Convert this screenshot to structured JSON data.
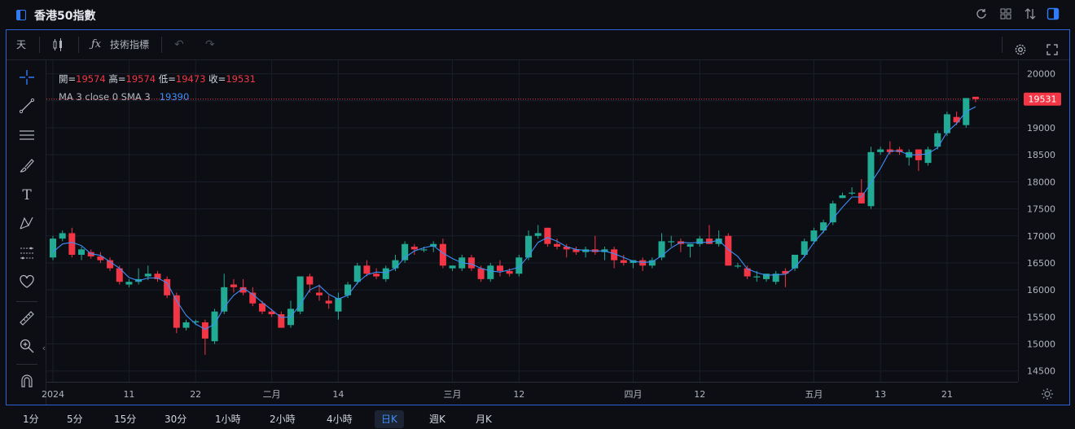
{
  "window": {
    "title": "香港50指數"
  },
  "toolbar": {
    "interval": "天",
    "indicators_label": "技術指標"
  },
  "legend": {
    "open_label": "開=",
    "open": "19574",
    "high_label": "高=",
    "high": "19574",
    "low_label": "低=",
    "low": "19473",
    "close_label": "收=",
    "close": "19531",
    "ma_label": "MA 3 close 0 SMA 3",
    "ma_value": "19390"
  },
  "price_tag": "19531",
  "colors": {
    "up": "#22ab94",
    "down": "#f23645",
    "ma": "#3d8ef7",
    "accent": "#2f7cf6"
  },
  "left_tools": [
    "crosshair-icon",
    "trend-line-icon",
    "horizontal-lines-icon",
    "brush-icon",
    "text-icon",
    "pattern-icon",
    "measure-lines-icon",
    "favorite-heart-icon",
    "ruler-icon",
    "zoom-in-icon",
    "magnet-icon"
  ],
  "timeframes": [
    "1分",
    "5分",
    "15分",
    "30分",
    "1小時",
    "2小時",
    "4小時",
    "日K",
    "週K",
    "月K"
  ],
  "active_timeframe": "日K",
  "chart_data": {
    "type": "candlestick",
    "y_ticks": [
      14500,
      15000,
      15500,
      16000,
      16500,
      17000,
      17500,
      18000,
      18500,
      19000,
      19500,
      20000
    ],
    "ylim": [
      14300,
      20250
    ],
    "x_ticks": [
      {
        "i": 0,
        "label": "2024"
      },
      {
        "i": 8,
        "label": "11"
      },
      {
        "i": 15,
        "label": "22"
      },
      {
        "i": 23,
        "label": "二月"
      },
      {
        "i": 30,
        "label": "14"
      },
      {
        "i": 42,
        "label": "三月"
      },
      {
        "i": 49,
        "label": "12"
      },
      {
        "i": 61,
        "label": "四月"
      },
      {
        "i": 68,
        "label": "12"
      },
      {
        "i": 80,
        "label": "五月"
      },
      {
        "i": 87,
        "label": "13"
      },
      {
        "i": 94,
        "label": "21"
      }
    ],
    "candles": [
      [
        16600,
        17000,
        16550,
        16950
      ],
      [
        16950,
        17100,
        16900,
        17050
      ],
      [
        17050,
        17150,
        16600,
        16650
      ],
      [
        16650,
        16800,
        16550,
        16750
      ],
      [
        16700,
        16750,
        16580,
        16620
      ],
      [
        16620,
        16700,
        16500,
        16550
      ],
      [
        16550,
        16600,
        16350,
        16400
      ],
      [
        16400,
        16450,
        16100,
        16150
      ],
      [
        16100,
        16200,
        16050,
        16150
      ],
      [
        16150,
        16400,
        16100,
        16200
      ],
      [
        16250,
        16450,
        16180,
        16300
      ],
      [
        16300,
        16350,
        16150,
        16200
      ],
      [
        16200,
        16250,
        15850,
        15900
      ],
      [
        15900,
        15950,
        15200,
        15300
      ],
      [
        15300,
        15450,
        15250,
        15400
      ],
      [
        15400,
        15450,
        15350,
        15420
      ],
      [
        15400,
        15450,
        14800,
        15100
      ],
      [
        15050,
        15650,
        15000,
        15600
      ],
      [
        15600,
        16300,
        15550,
        16050
      ],
      [
        16100,
        16200,
        15950,
        16050
      ],
      [
        16050,
        16200,
        15900,
        15950
      ],
      [
        15950,
        16050,
        15700,
        15750
      ],
      [
        15750,
        15800,
        15550,
        15600
      ],
      [
        15600,
        15650,
        15500,
        15550
      ],
      [
        15550,
        15600,
        15300,
        15300
      ],
      [
        15350,
        15800,
        15300,
        15650
      ],
      [
        15600,
        16200,
        15550,
        16250
      ],
      [
        16250,
        16300,
        15950,
        16100
      ],
      [
        15950,
        16100,
        15800,
        15900
      ],
      [
        15800,
        15900,
        15650,
        15750
      ],
      [
        15600,
        15950,
        15450,
        15850
      ],
      [
        15900,
        16150,
        15850,
        16100
      ],
      [
        16150,
        16500,
        16100,
        16450
      ],
      [
        16450,
        16550,
        16250,
        16300
      ],
      [
        16300,
        16400,
        16200,
        16250
      ],
      [
        16200,
        16450,
        16150,
        16400
      ],
      [
        16400,
        16650,
        16350,
        16550
      ],
      [
        16550,
        16900,
        16500,
        16850
      ],
      [
        16800,
        16850,
        16650,
        16750
      ],
      [
        16750,
        16800,
        16700,
        16750
      ],
      [
        16800,
        16900,
        16700,
        16850
      ],
      [
        16850,
        16950,
        16400,
        16450
      ],
      [
        16400,
        16450,
        16350,
        16450
      ],
      [
        16400,
        16650,
        16350,
        16600
      ],
      [
        16600,
        16650,
        16350,
        16400
      ],
      [
        16400,
        16450,
        16150,
        16200
      ],
      [
        16200,
        16500,
        16150,
        16450
      ],
      [
        16450,
        16550,
        16250,
        16350
      ],
      [
        16350,
        16400,
        16250,
        16300
      ],
      [
        16300,
        16650,
        16250,
        16600
      ],
      [
        16600,
        17100,
        16550,
        17000
      ],
      [
        17000,
        17200,
        16950,
        17050
      ],
      [
        17150,
        17150,
        16800,
        16850
      ],
      [
        16850,
        16950,
        16750,
        16800
      ],
      [
        16800,
        16850,
        16600,
        16750
      ],
      [
        16750,
        16800,
        16650,
        16700
      ],
      [
        16700,
        16800,
        16600,
        16750
      ],
      [
        16750,
        17000,
        16650,
        16700
      ],
      [
        16700,
        16800,
        16550,
        16750
      ],
      [
        16750,
        16800,
        16400,
        16550
      ],
      [
        16550,
        16650,
        16450,
        16500
      ],
      [
        16500,
        16550,
        16400,
        16550
      ],
      [
        16550,
        16600,
        16350,
        16450
      ],
      [
        16450,
        16600,
        16400,
        16550
      ],
      [
        16600,
        17050,
        16550,
        16900
      ],
      [
        16900,
        17000,
        16800,
        16900
      ],
      [
        16900,
        16950,
        16700,
        16850
      ],
      [
        16800,
        16850,
        16600,
        16850
      ],
      [
        16850,
        17000,
        16800,
        16950
      ],
      [
        16950,
        17200,
        16850,
        16850
      ],
      [
        16850,
        17100,
        16800,
        16950
      ],
      [
        17000,
        17050,
        16450,
        16450
      ],
      [
        16450,
        16500,
        16400,
        16450
      ],
      [
        16400,
        16450,
        16200,
        16250
      ],
      [
        16250,
        16350,
        16150,
        16250
      ],
      [
        16200,
        16300,
        16150,
        16300
      ],
      [
        16150,
        16350,
        16100,
        16300
      ],
      [
        16350,
        16400,
        16050,
        16300
      ],
      [
        16400,
        16650,
        16350,
        16650
      ],
      [
        16650,
        16950,
        16600,
        16900
      ],
      [
        16900,
        17150,
        16850,
        17100
      ],
      [
        17100,
        17300,
        17050,
        17250
      ],
      [
        17250,
        17650,
        17200,
        17600
      ],
      [
        17700,
        17800,
        17700,
        17750
      ],
      [
        17800,
        17900,
        17750,
        17800
      ],
      [
        17800,
        18050,
        17600,
        17600
      ],
      [
        17550,
        18650,
        17500,
        18550
      ],
      [
        18550,
        18650,
        18500,
        18600
      ],
      [
        18600,
        18750,
        18500,
        18550
      ],
      [
        18600,
        18650,
        18500,
        18550
      ],
      [
        18450,
        18600,
        18300,
        18550
      ],
      [
        18600,
        18550,
        18200,
        18400
      ],
      [
        18350,
        18650,
        18300,
        18600
      ],
      [
        18650,
        18950,
        18600,
        18900
      ],
      [
        18900,
        19300,
        18850,
        19250
      ],
      [
        19200,
        19300,
        19050,
        19100
      ],
      [
        19050,
        19550,
        19000,
        19550
      ],
      [
        19574,
        19574,
        19473,
        19531
      ]
    ],
    "ma3": [
      16700,
      16850,
      16880,
      16820,
      16670,
      16640,
      16520,
      16400,
      16230,
      16170,
      16220,
      16220,
      16130,
      15800,
      15530,
      15370,
      15270,
      15370,
      15680,
      15900,
      16030,
      15920,
      15770,
      15630,
      15490,
      15500,
      15730,
      16000,
      16080,
      15920,
      15830,
      15900,
      16130,
      16280,
      16330,
      16320,
      16400,
      16600,
      16720,
      16780,
      16820,
      16680,
      16580,
      16500,
      16480,
      16400,
      16350,
      16330,
      16370,
      16420,
      16630,
      16880,
      16970,
      16900,
      16800,
      16750,
      16730,
      16720,
      16720,
      16670,
      16600,
      16530,
      16510,
      16520,
      16630,
      16780,
      16880,
      16870,
      16880,
      16880,
      16920,
      16750,
      16620,
      16390,
      16320,
      16270,
      16280,
      16290,
      16420,
      16620,
      16880,
      17080,
      17320,
      17530,
      17720,
      17720,
      17980,
      18250,
      18570,
      18570,
      18500,
      18500,
      18520,
      18630,
      18920,
      19080,
      19300,
      19390
    ]
  }
}
